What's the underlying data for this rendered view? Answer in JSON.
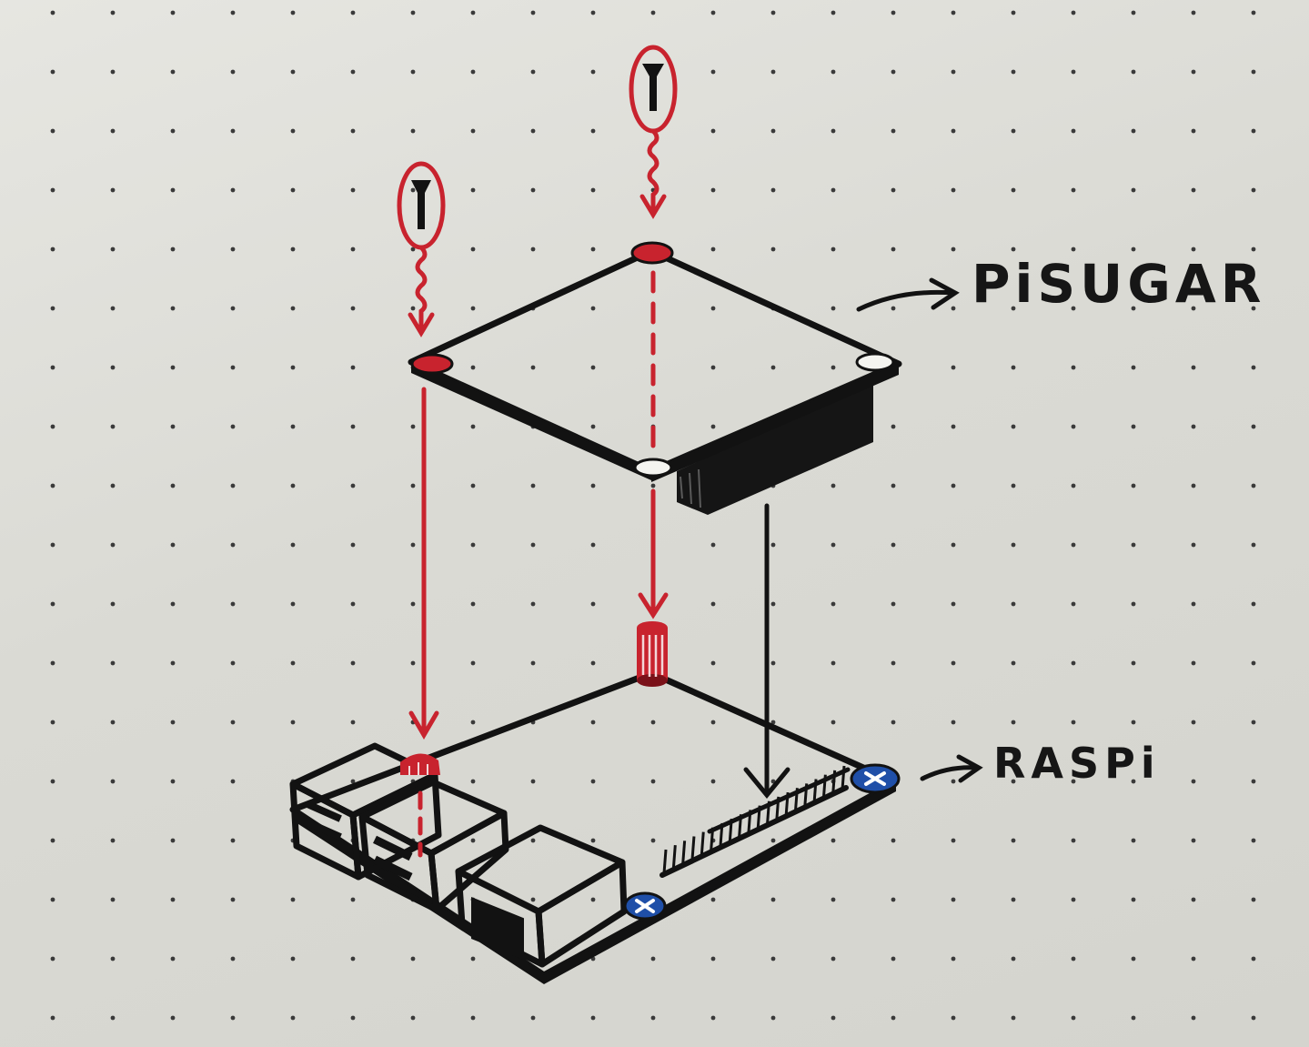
{
  "labels": {
    "top_board": "PiSUGAR",
    "bottom_board": "RASPi"
  },
  "colors": {
    "ink": "#121212",
    "marker_red": "#c8232e",
    "screw_blue": "#1f4fa8",
    "paper": "#dcdcd7",
    "dot": "#3a3a3a"
  },
  "icons": {
    "screw": "screw-icon",
    "standoff": "standoff-icon",
    "mounting_hole": "mounting-hole-icon",
    "pointer_arrow": "arrow-right-icon"
  }
}
